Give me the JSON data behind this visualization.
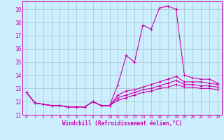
{
  "xlabel": "Windchill (Refroidissement éolien,°C)",
  "background_color": "#cceeff",
  "grid_color": "#aacccc",
  "line_color": "#cc00aa",
  "xlim": [
    -0.5,
    23.5
  ],
  "ylim": [
    11.0,
    19.6
  ],
  "yticks": [
    11,
    12,
    13,
    14,
    15,
    16,
    17,
    18,
    19
  ],
  "xticks": [
    0,
    1,
    2,
    3,
    4,
    5,
    6,
    7,
    8,
    9,
    10,
    11,
    12,
    13,
    14,
    15,
    16,
    17,
    18,
    19,
    20,
    21,
    22,
    23
  ],
  "series": [
    [
      12.7,
      11.9,
      11.8,
      11.7,
      11.7,
      11.6,
      11.6,
      11.6,
      12.0,
      11.7,
      11.7,
      13.3,
      15.5,
      15.0,
      17.8,
      17.5,
      19.1,
      19.25,
      19.0,
      14.0,
      13.8,
      13.7,
      13.7,
      13.4
    ],
    [
      12.7,
      11.9,
      11.8,
      11.7,
      11.7,
      11.6,
      11.6,
      11.6,
      12.0,
      11.7,
      11.7,
      12.5,
      12.8,
      12.9,
      13.1,
      13.3,
      13.5,
      13.7,
      13.9,
      13.5,
      13.5,
      13.5,
      13.4,
      13.3
    ],
    [
      12.7,
      11.9,
      11.8,
      11.7,
      11.7,
      11.6,
      11.6,
      11.6,
      12.0,
      11.7,
      11.7,
      12.3,
      12.5,
      12.7,
      12.9,
      13.0,
      13.2,
      13.4,
      13.6,
      13.3,
      13.3,
      13.2,
      13.2,
      13.1
    ],
    [
      12.7,
      11.9,
      11.8,
      11.7,
      11.7,
      11.6,
      11.6,
      11.6,
      12.0,
      11.7,
      11.7,
      12.1,
      12.3,
      12.5,
      12.7,
      12.8,
      13.0,
      13.1,
      13.3,
      13.1,
      13.1,
      13.0,
      13.0,
      12.9
    ]
  ]
}
